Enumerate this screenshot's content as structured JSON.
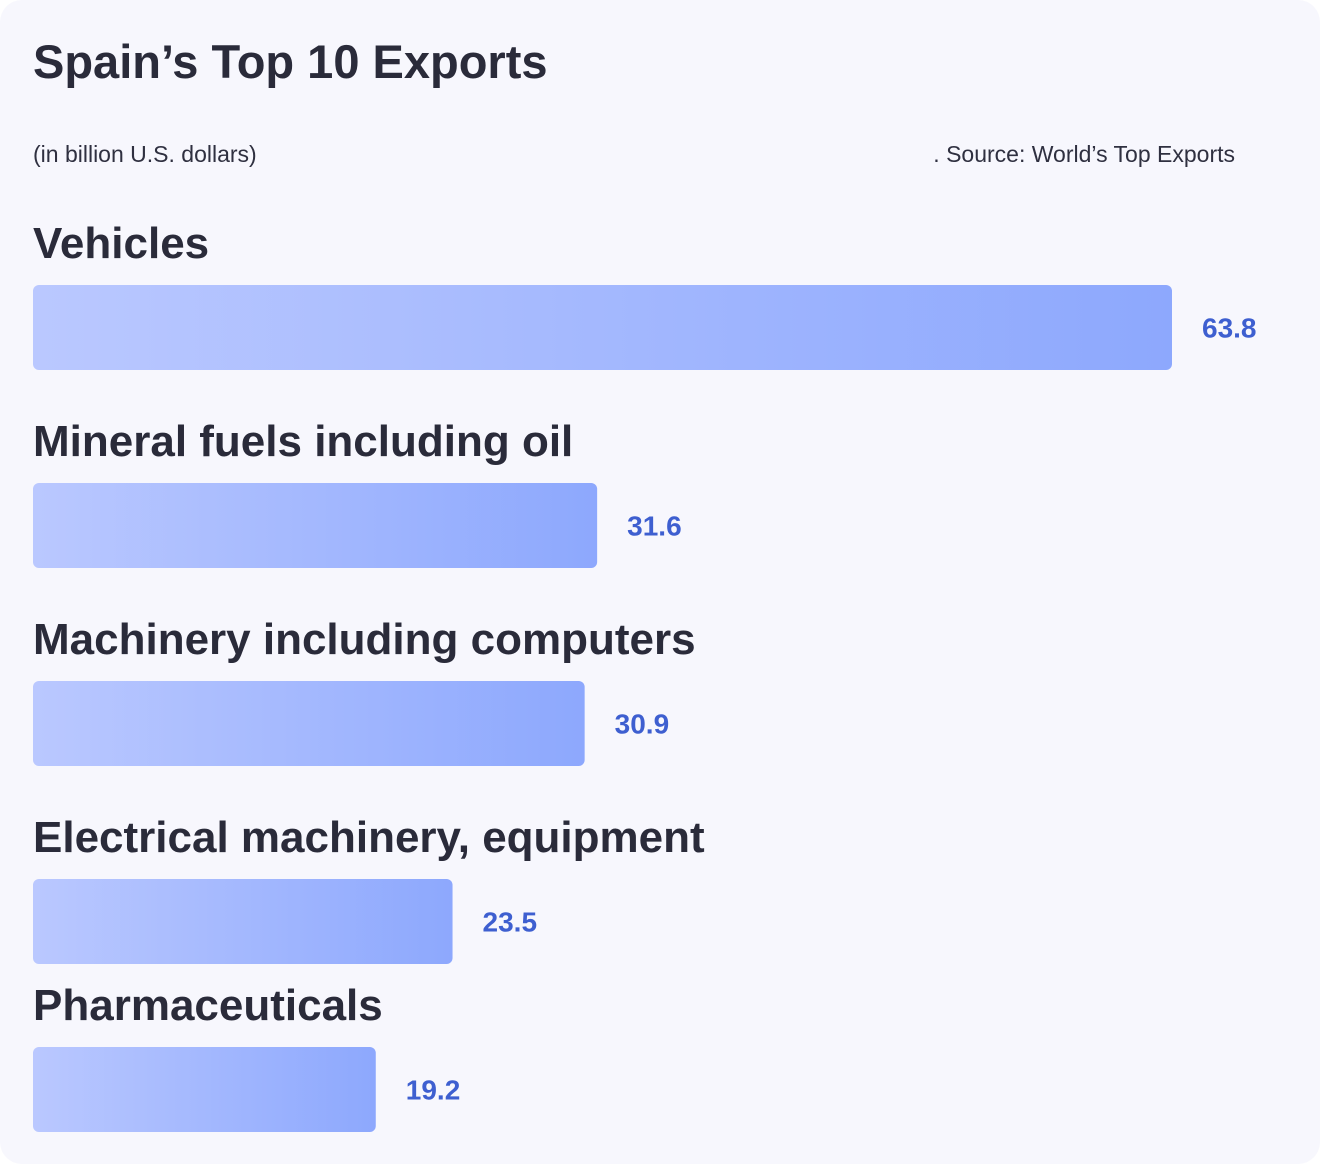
{
  "header": {
    "title": "Spain’s Top 10 Exports",
    "subtitle": "(in billion U.S. dollars)",
    "source": ". Source: World’s Top Exports"
  },
  "colors": {
    "bar_start": "#bac8ff",
    "bar_end": "#8da8fd",
    "value_text": "#3e5fd0",
    "label_text": "#2a2b3a",
    "card_background": "#f7f7fd"
  },
  "chart_data": {
    "type": "bar",
    "orientation": "horizontal",
    "categories": [
      "Vehicles",
      "Mineral fuels including oil",
      "Machinery including computers",
      "Electrical machinery, equipment",
      "Pharmaceuticals"
    ],
    "values": [
      63.8,
      31.6,
      30.9,
      23.5,
      19.2
    ],
    "value_labels": [
      "63.8",
      "31.6",
      "30.9",
      "23.5",
      "19.2"
    ],
    "title": "Spain’s Top 10 Exports",
    "subtitle": "(in billion U.S. dollars)",
    "xlim": [
      0,
      63.8
    ],
    "grid": false,
    "legend": false
  }
}
